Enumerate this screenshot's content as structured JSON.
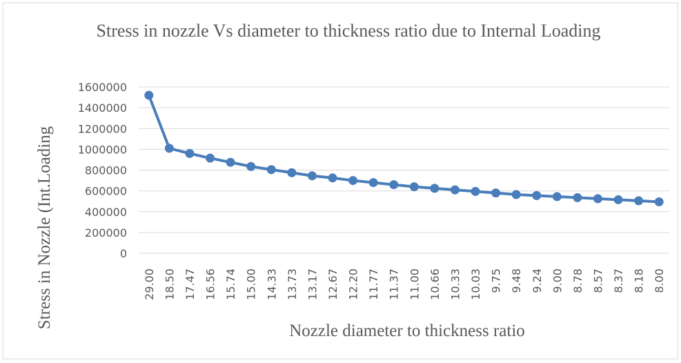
{
  "chart_data": {
    "type": "line",
    "title": "Stress in nozzle Vs diameter to thickness ratio due to Internal Loading",
    "x_label": "Nozzle diameter to thickness ratio",
    "y_label": "Stress in Nozzle (Int.Loading",
    "categories": [
      "29.00",
      "18.50",
      "17.47",
      "16.56",
      "15.74",
      "15.00",
      "14.33",
      "13.73",
      "13.17",
      "12.67",
      "12.20",
      "11.77",
      "11.37",
      "11.00",
      "10.66",
      "10.33",
      "10.03",
      "9.75",
      "9.48",
      "9.24",
      "9.00",
      "8.78",
      "8.57",
      "8.37",
      "8.18",
      "8.00"
    ],
    "values": [
      1520000,
      1010000,
      960000,
      915000,
      875000,
      835000,
      805000,
      775000,
      745000,
      725000,
      700000,
      680000,
      660000,
      640000,
      625000,
      610000,
      595000,
      580000,
      565000,
      555000,
      545000,
      535000,
      525000,
      515000,
      505000,
      495000
    ],
    "color": "#4a7ebb",
    "ylim": [
      0,
      1600000
    ],
    "yticks": [
      0,
      200000,
      400000,
      600000,
      800000,
      1000000,
      1200000,
      1400000,
      1600000
    ],
    "grid": true
  }
}
